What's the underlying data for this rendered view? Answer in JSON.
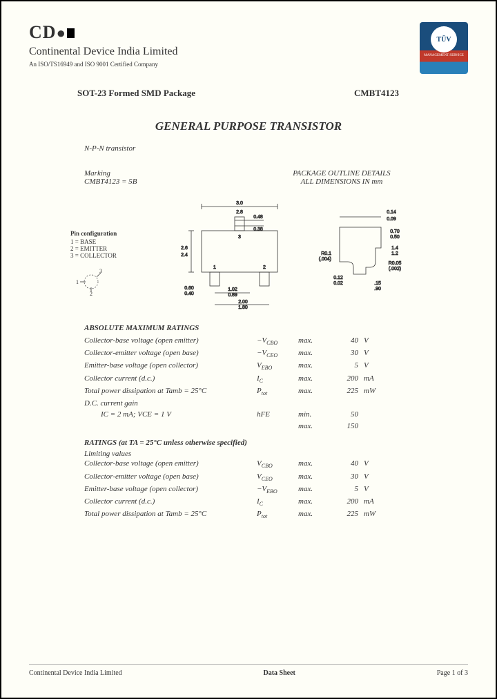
{
  "header": {
    "logo_text": "CD",
    "company_name": "Continental Device India Limited",
    "iso_line": "An ISO/TS16949 and ISO 9001 Certified Company",
    "tuv_label": "TÜV"
  },
  "title_row": {
    "package": "SOT-23 Formed SMD Package",
    "part_number": "CMBT4123"
  },
  "main_title": "GENERAL PURPOSE TRANSISTOR",
  "subtitle": "N-P-N transistor",
  "marking": {
    "label": "Marking",
    "value": "CMBT4123 = 5B"
  },
  "outline": {
    "title": "PACKAGE OUTLINE DETAILS",
    "subtitle": "ALL DIMENSIONS IN mm"
  },
  "pin_config": {
    "title": "Pin configuration",
    "pins": [
      "1 = BASE",
      "2 = EMITTER",
      "3 = COLLECTOR"
    ]
  },
  "dimensions": {
    "w_max": "3.0",
    "w_min": "2.8",
    "lead_w_max": "0.48",
    "lead_w_min": "0.38",
    "h_max": "2.6",
    "h_min": "2.4",
    "pitch_max": "1.02",
    "pitch_min": "0.89",
    "span_max": "2.00",
    "span_min": "1.80",
    "foot_max": "0.60",
    "foot_min": "0.40",
    "thk_max": "0.14",
    "thk_min": "0.09",
    "body_h_max": "0.70",
    "body_h_min": "0.50",
    "total_h_max": "1.4",
    "total_h_min": "1.2",
    "r1": "R0.1",
    "r1_in": "(.004)",
    "r2": "R0.05",
    "r2_in": "(.002)",
    "lead_t_max": "0.12",
    "lead_t_min": "0.02",
    "stand_max": ".15",
    "stand_min": ".90"
  },
  "abs_max": {
    "title": "ABSOLUTE MAXIMUM RATINGS",
    "rows": [
      {
        "desc": "Collector-base voltage (open emitter)",
        "sym": "−V",
        "sub": "CBO",
        "mm": "max.",
        "val": "40",
        "unit": "V"
      },
      {
        "desc": "Collector-emitter voltage (open base)",
        "sym": "−V",
        "sub": "CEO",
        "mm": "max.",
        "val": "30",
        "unit": "V"
      },
      {
        "desc": "Emitter-base voltage (open collector)",
        "sym": "V",
        "sub": "EBO",
        "mm": "max.",
        "val": "5",
        "unit": "V"
      },
      {
        "desc": "Collector current (d.c.)",
        "sym": "I",
        "sub": "C",
        "mm": "max.",
        "val": "200",
        "unit": "mA"
      },
      {
        "desc": "Total power dissipation at Tamb = 25°C",
        "sym": "P",
        "sub": "tot",
        "mm": "max.",
        "val": "225",
        "unit": "mW"
      }
    ],
    "dc_gain_label": "D.C. current gain",
    "dc_gain_cond": "IC = 2 mA;  VCE = 1 V",
    "dc_gain_sym": "hFE",
    "dc_gain_min": {
      "mm": "min.",
      "val": "50"
    },
    "dc_gain_max": {
      "mm": "max.",
      "val": "150"
    }
  },
  "ratings": {
    "title": "RATINGS (at TA = 25°C unless otherwise specified)",
    "subtitle": "Limiting values",
    "rows": [
      {
        "desc": "Collector-base voltage (open emitter)",
        "sym": "V",
        "sub": "CBO",
        "mm": "max.",
        "val": "40",
        "unit": "V"
      },
      {
        "desc": "Collector-emitter voltage (open base)",
        "sym": "V",
        "sub": "CEO",
        "mm": "max.",
        "val": "30",
        "unit": "V"
      },
      {
        "desc": "Emitter-base voltage (open collector)",
        "sym": "−V",
        "sub": "EBO",
        "mm": "max.",
        "val": "5",
        "unit": "V"
      },
      {
        "desc": "Collector current (d.c.)",
        "sym": "I",
        "sub": "C",
        "mm": "max.",
        "val": "200",
        "unit": "mA"
      },
      {
        "desc": "Total power dissipation at Tamb = 25°C",
        "sym": "P",
        "sub": "tot",
        "mm": "max.",
        "val": "225",
        "unit": "mW"
      }
    ]
  },
  "footer": {
    "left": "Continental Device India Limited",
    "center": "Data Sheet",
    "right": "Page 1 of 3"
  }
}
